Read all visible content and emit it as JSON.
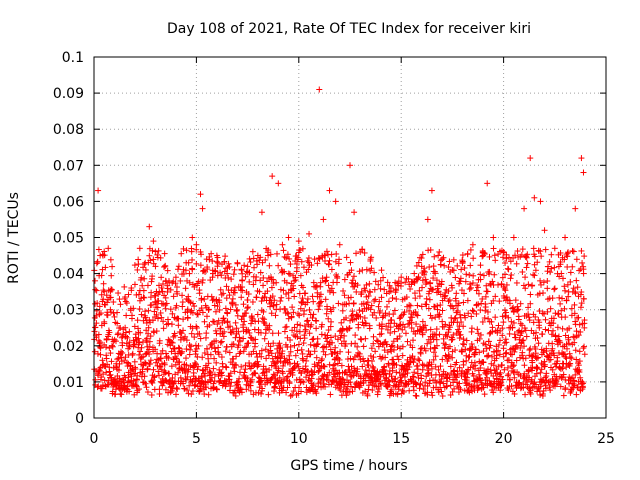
{
  "chart_data": {
    "type": "scatter",
    "title": "Day 108 of 2021, Rate Of TEC Index for receiver kiri",
    "xlabel": "GPS time / hours",
    "ylabel": "ROTI / TECUs",
    "xlim": [
      0,
      25
    ],
    "ylim": [
      0,
      0.1
    ],
    "x_ticks": [
      "0",
      "5",
      "10",
      "15",
      "20",
      "25"
    ],
    "y_ticks": [
      "0",
      "0.01",
      "0.02",
      "0.03",
      "0.04",
      "0.05",
      "0.06",
      "0.07",
      "0.08",
      "0.09",
      "0.1"
    ],
    "grid": true,
    "marker": "+",
    "series_color": "#ff0000",
    "series": [
      {
        "name": "ROTI",
        "x": [
          0.05,
          0.2,
          0.3,
          0.5,
          0.8,
          1.0,
          1.5,
          2.0,
          2.5,
          2.7,
          2.9,
          3.0,
          3.5,
          4.0,
          4.5,
          4.8,
          5.0,
          5.2,
          5.3,
          5.5,
          6.0,
          6.5,
          7.0,
          7.5,
          8.0,
          8.2,
          8.5,
          8.7,
          9.0,
          9.2,
          9.5,
          10.0,
          10.5,
          11.0,
          11.2,
          11.5,
          11.8,
          12.0,
          12.5,
          12.7,
          13.0,
          13.5,
          14.0,
          14.5,
          15.0,
          15.5,
          16.0,
          16.3,
          16.5,
          17.0,
          17.5,
          18.0,
          18.5,
          19.0,
          19.2,
          19.5,
          20.0,
          20.5,
          21.0,
          21.3,
          21.5,
          21.8,
          22.0,
          22.5,
          23.0,
          23.5,
          23.8,
          23.9
        ],
        "y": [
          0.038,
          0.063,
          0.045,
          0.035,
          0.03,
          0.028,
          0.033,
          0.037,
          0.043,
          0.053,
          0.049,
          0.042,
          0.038,
          0.039,
          0.043,
          0.05,
          0.048,
          0.062,
          0.058,
          0.044,
          0.045,
          0.04,
          0.043,
          0.042,
          0.045,
          0.057,
          0.045,
          0.067,
          0.065,
          0.048,
          0.05,
          0.049,
          0.051,
          0.091,
          0.055,
          0.063,
          0.06,
          0.048,
          0.07,
          0.057,
          0.046,
          0.044,
          0.038,
          0.036,
          0.039,
          0.037,
          0.042,
          0.055,
          0.063,
          0.044,
          0.041,
          0.043,
          0.048,
          0.045,
          0.065,
          0.05,
          0.046,
          0.05,
          0.058,
          0.072,
          0.061,
          0.06,
          0.052,
          0.047,
          0.05,
          0.058,
          0.072,
          0.068
        ]
      }
    ]
  }
}
